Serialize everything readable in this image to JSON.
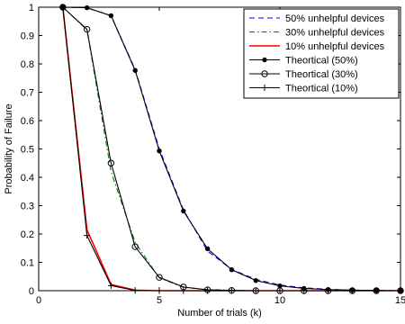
{
  "chart_data": {
    "type": "line",
    "xlabel": "Number of trials (k)",
    "ylabel": "Probability of Failure",
    "xlim": [
      0,
      15
    ],
    "ylim": [
      0,
      1
    ],
    "xticks": [
      0,
      5,
      10,
      15
    ],
    "yticks": [
      0,
      0.1,
      0.2,
      0.3,
      0.4,
      0.5,
      0.6,
      0.7,
      0.8,
      0.9,
      1
    ],
    "grid": false,
    "legend_position": "top-right",
    "series": [
      {
        "name": "50% unhelpful devices",
        "color": "#0000ff",
        "dash": "dashed",
        "marker": "none",
        "x": [
          1,
          2,
          3,
          4,
          5,
          6,
          7,
          8,
          9,
          10,
          11,
          12,
          13,
          14,
          15
        ],
        "y": [
          1.0,
          0.998,
          0.97,
          0.78,
          0.5,
          0.285,
          0.14,
          0.075,
          0.04,
          0.02,
          0.01,
          0.005,
          0.002,
          0.001,
          0.0
        ]
      },
      {
        "name": "30% unhelpful devices",
        "color": "#008000",
        "dash": "dashdot",
        "marker": "none",
        "x": [
          1,
          2,
          3,
          4,
          5,
          6,
          7,
          8,
          9,
          10,
          11,
          12,
          13,
          14,
          15
        ],
        "y": [
          1.0,
          0.92,
          0.42,
          0.17,
          0.045,
          0.012,
          0.004,
          0.002,
          0.0,
          0.0,
          0.0,
          0.0,
          0.0,
          0.0,
          0.0
        ]
      },
      {
        "name": "10% unhelpful devices",
        "color": "#ff0000",
        "dash": "solid",
        "marker": "none",
        "x": [
          1,
          2,
          3,
          4,
          5,
          6,
          7,
          8,
          9,
          10,
          11,
          12,
          13,
          14,
          15
        ],
        "y": [
          1.0,
          0.215,
          0.022,
          0.002,
          0.0,
          0.0,
          0.0,
          0.0,
          0.0,
          0.0,
          0.0,
          0.0,
          0.0,
          0.0,
          0.0
        ]
      },
      {
        "name": "Theortical (50%)",
        "color": "#000000",
        "dash": "solid",
        "marker": "filled-dot",
        "x": [
          1,
          2,
          3,
          4,
          5,
          6,
          7,
          8,
          9,
          10,
          11,
          12,
          13,
          14,
          15
        ],
        "y": [
          1.0,
          0.998,
          0.97,
          0.777,
          0.493,
          0.281,
          0.148,
          0.074,
          0.036,
          0.017,
          0.008,
          0.004,
          0.002,
          0.001,
          0.0
        ]
      },
      {
        "name": "Theortical (30%)",
        "color": "#000000",
        "dash": "solid",
        "marker": "open-circle",
        "x": [
          1,
          2,
          3,
          4,
          5,
          6,
          7,
          8,
          9,
          10,
          11,
          12,
          13,
          14,
          15
        ],
        "y": [
          1.0,
          0.922,
          0.45,
          0.155,
          0.047,
          0.013,
          0.003,
          0.001,
          0.0,
          0.0,
          0.0,
          0.0,
          0.0,
          0.0,
          0.0
        ]
      },
      {
        "name": "Theortical (10%)",
        "color": "#000000",
        "dash": "solid",
        "marker": "plus",
        "x": [
          1,
          2,
          3,
          4,
          5,
          6,
          7,
          8,
          9,
          10,
          11,
          12,
          13,
          14,
          15
        ],
        "y": [
          1.0,
          0.195,
          0.018,
          0.001,
          0.0,
          0.0,
          0.0,
          0.0,
          0.0,
          0.0,
          0.0,
          0.0,
          0.0,
          0.0,
          0.0
        ]
      }
    ]
  }
}
